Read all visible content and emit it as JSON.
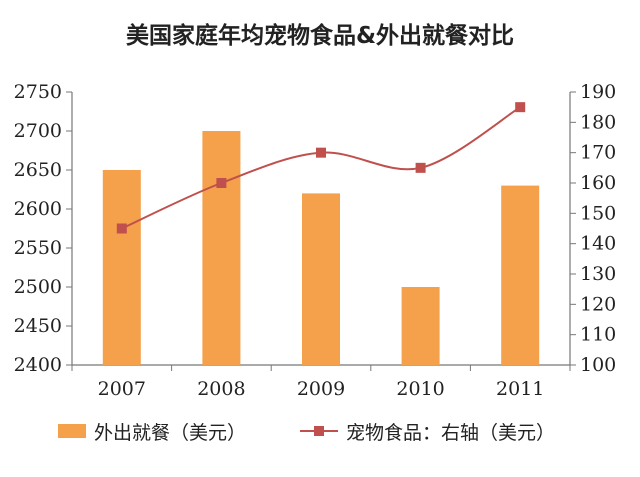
{
  "chart_data": {
    "type": "bar+line",
    "title": "美国家庭年均宠物食品&外出就餐对比",
    "categories": [
      "2007",
      "2008",
      "2009",
      "2010",
      "2011"
    ],
    "series": [
      {
        "name": "外出就餐（美元）",
        "type": "bar",
        "axis": "left",
        "values": [
          2650,
          2700,
          2620,
          2500,
          2630
        ],
        "color": "#F5A04A"
      },
      {
        "name": "宠物食品：右轴（美元）",
        "type": "line",
        "axis": "right",
        "values": [
          145,
          160,
          170,
          165,
          185
        ],
        "color": "#C0504D"
      }
    ],
    "y_left": {
      "min": 2400,
      "max": 2750,
      "step": 50,
      "ticks": [
        "2400",
        "2450",
        "2500",
        "2550",
        "2600",
        "2650",
        "2700",
        "2750"
      ]
    },
    "y_right": {
      "min": 100,
      "max": 190,
      "step": 10,
      "ticks": [
        "100",
        "110",
        "120",
        "130",
        "140",
        "150",
        "160",
        "170",
        "180",
        "190"
      ]
    },
    "grid": false,
    "legend_position": "bottom"
  }
}
